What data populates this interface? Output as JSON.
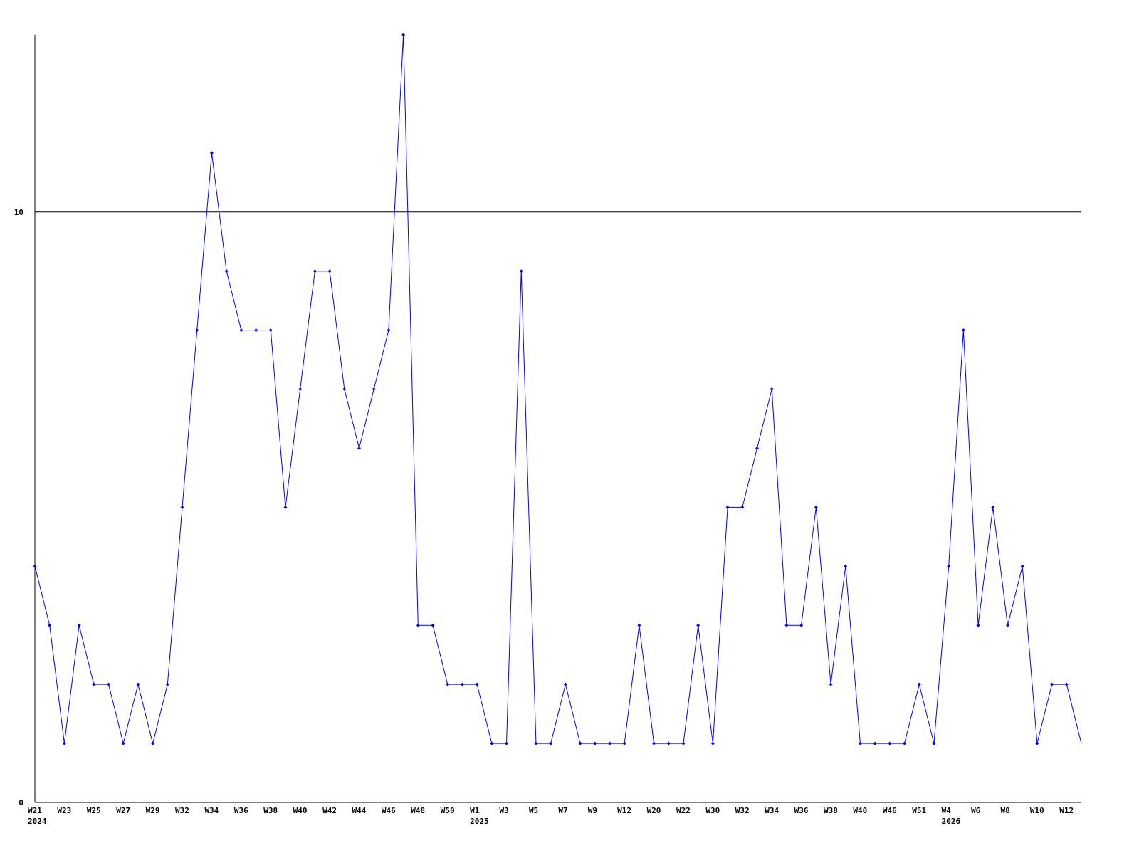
{
  "chart_data": {
    "type": "line",
    "title": "",
    "xlabel": "",
    "ylabel": "",
    "ylim": [
      0,
      13
    ],
    "yticks": [
      0,
      10
    ],
    "grid": "horizontal line at 10",
    "line_color": "#0000ff",
    "x_labels": [
      "W21",
      "",
      "W23",
      "",
      "W25",
      "",
      "W27",
      "",
      "W29",
      "",
      "W32",
      "",
      "W34",
      "",
      "W36",
      "",
      "W38",
      "",
      "W40",
      "",
      "W42",
      "",
      "W44",
      "",
      "W46",
      "",
      "W48",
      "",
      "W50",
      "",
      "W1",
      "",
      "W3",
      "",
      "W5",
      "",
      "W7",
      "",
      "W9",
      "",
      "W12",
      "",
      "W20",
      "",
      "W22",
      "",
      "W30",
      "",
      "W32",
      "",
      "W34",
      "",
      "W36",
      "",
      "W38",
      "",
      "W40",
      "",
      "W46",
      "",
      "W51",
      "",
      "W4",
      "",
      "W6",
      "",
      "W8",
      "",
      "W10",
      "",
      "W12",
      ""
    ],
    "year_labels": [
      {
        "index": 0,
        "label": "2024"
      },
      {
        "index": 30,
        "label": "2025"
      },
      {
        "index": 62,
        "label": "2026"
      }
    ],
    "values": [
      4,
      3,
      1,
      3,
      2,
      2,
      1,
      2,
      1,
      2,
      5,
      8,
      11,
      9,
      8,
      8,
      8,
      5,
      7,
      9,
      9,
      7,
      6,
      7,
      8,
      13,
      3,
      3,
      2,
      2,
      2,
      1,
      1,
      9,
      1,
      1,
      2,
      1,
      1,
      1,
      1,
      3,
      1,
      1,
      1,
      3,
      1,
      5,
      5,
      6,
      7,
      3,
      3,
      5,
      2,
      4,
      1,
      1,
      1,
      1,
      2,
      1,
      4,
      8,
      3,
      5,
      3,
      4,
      1,
      2,
      2,
      1
    ]
  }
}
